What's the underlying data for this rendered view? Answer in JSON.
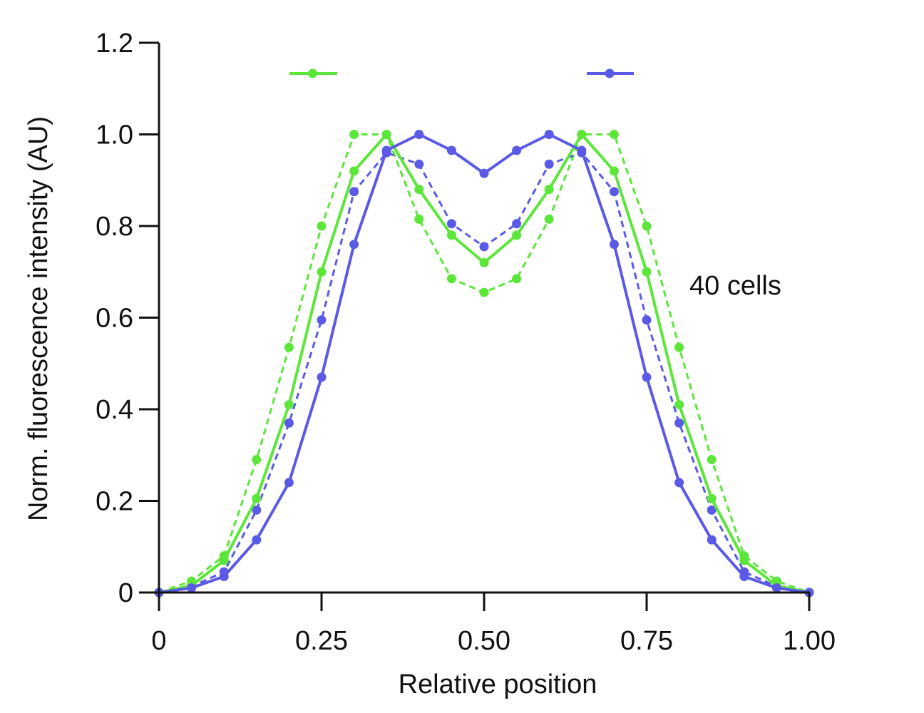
{
  "chart_data": {
    "type": "line",
    "title": "",
    "xlabel": "Relative position",
    "ylabel": "Norm. fluorescence intensity (AU)",
    "xlim": [
      0,
      1.0
    ],
    "ylim": [
      0,
      1.2
    ],
    "x_ticks": [
      0,
      0.25,
      0.5,
      0.75,
      1.0
    ],
    "x_tick_labels": [
      "0",
      "0.25",
      "0.50",
      "0.75",
      "1.00"
    ],
    "y_ticks": [
      0,
      0.2,
      0.4,
      0.6,
      0.8,
      1.0,
      1.2
    ],
    "y_tick_labels": [
      "0",
      "0.2",
      "0.4",
      "0.6",
      "0.8",
      "1.0",
      "1.2"
    ],
    "grid": false,
    "legend": {
      "placement": "top",
      "entries": [
        {
          "name": "",
          "color": "#5ce63a",
          "style": "solid"
        },
        {
          "name": "",
          "color": "#5a5ae6",
          "style": "solid"
        }
      ]
    },
    "annotations": [
      "40 cells"
    ],
    "x": [
      0,
      0.05,
      0.1,
      0.15,
      0.2,
      0.25,
      0.3,
      0.35,
      0.4,
      0.45,
      0.5,
      0.55,
      0.6,
      0.65,
      0.7,
      0.75,
      0.8,
      0.85,
      0.9,
      0.95,
      1.0
    ],
    "series": [
      {
        "name": "green-dashed",
        "color": "#5ce63a",
        "style": "dashed",
        "values": [
          0,
          0.025,
          0.08,
          0.29,
          0.535,
          0.8,
          1.0,
          1.0,
          0.815,
          0.685,
          0.655,
          0.685,
          0.815,
          1.0,
          1.0,
          0.8,
          0.535,
          0.29,
          0.08,
          0.025,
          0
        ]
      },
      {
        "name": "blue-dashed",
        "color": "#5a5ae6",
        "style": "dashed",
        "values": [
          0,
          0.013,
          0.045,
          0.18,
          0.37,
          0.595,
          0.875,
          0.96,
          0.935,
          0.805,
          0.755,
          0.805,
          0.935,
          0.96,
          0.875,
          0.595,
          0.37,
          0.18,
          0.045,
          0.013,
          0
        ]
      },
      {
        "name": "green-solid",
        "color": "#5ce63a",
        "style": "solid",
        "values": [
          0,
          0.015,
          0.07,
          0.205,
          0.41,
          0.7,
          0.92,
          1.0,
          0.88,
          0.78,
          0.72,
          0.78,
          0.88,
          1.0,
          0.92,
          0.7,
          0.41,
          0.205,
          0.07,
          0.015,
          0
        ]
      },
      {
        "name": "blue-solid",
        "color": "#5a5ae6",
        "style": "solid",
        "values": [
          0,
          0.01,
          0.035,
          0.115,
          0.24,
          0.47,
          0.76,
          0.965,
          1.0,
          0.965,
          0.915,
          0.965,
          1.0,
          0.965,
          0.76,
          0.47,
          0.24,
          0.115,
          0.035,
          0.01,
          0
        ]
      }
    ]
  }
}
